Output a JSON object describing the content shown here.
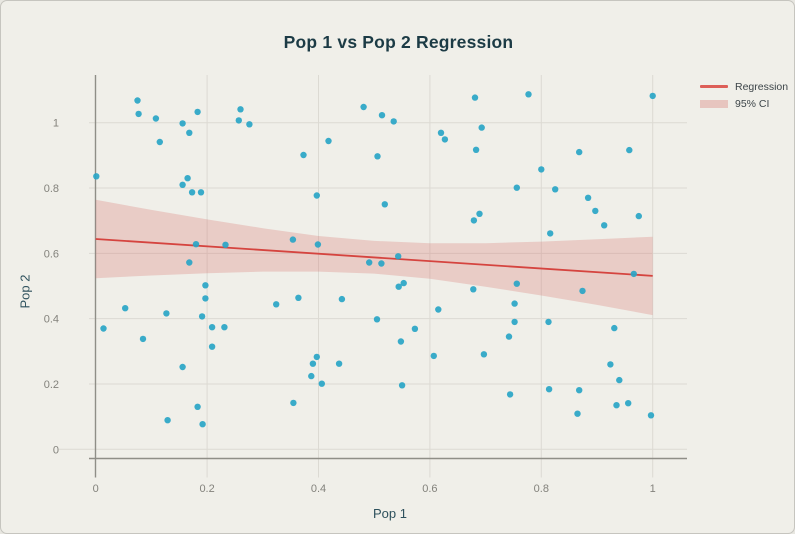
{
  "colors": {
    "background": "#f0efe9",
    "title": "#1c3b45",
    "axis_title": "#2d505c",
    "tick_label": "#83827c",
    "gridline": "#dcdad3",
    "spine": "#8f8e87",
    "point": "#29a5c6",
    "regression": "#d5443f",
    "ci_fill": "#d5655f",
    "legend_text": "#3d4549"
  },
  "legend": {
    "items": [
      {
        "label": "Regression",
        "swatch": "line-swatch"
      },
      {
        "label": "95% CI",
        "swatch": "band-swatch"
      }
    ]
  },
  "chart_data": {
    "type": "scatter",
    "title": "Pop 1 vs Pop 2 Regression",
    "xlabel": "Pop 1",
    "ylabel": "Pop 2",
    "xlim": [
      -0.012,
      1.062
    ],
    "ylim": [
      -0.028,
      1.146
    ],
    "grid": true,
    "legend_position": "top-right",
    "x_ticks": [
      0,
      0.2,
      0.4,
      0.6,
      0.8,
      1
    ],
    "x_tick_labels": [
      "0",
      "0.2",
      "0.4",
      "0.6",
      "0.8",
      "1"
    ],
    "y_ticks": [
      0,
      0.2,
      0.4,
      0.6,
      0.8,
      1
    ],
    "y_tick_labels": [
      "0",
      "0.2",
      "0.4",
      "0.6",
      "0.8",
      "1"
    ],
    "points": [
      [
        0.075,
        1.068
      ],
      [
        0.077,
        1.027
      ],
      [
        0.108,
        1.013
      ],
      [
        0.156,
        0.998
      ],
      [
        0.183,
        1.033
      ],
      [
        0.26,
        1.041
      ],
      [
        0.257,
        1.007
      ],
      [
        0.276,
        0.995
      ],
      [
        0.168,
        0.969
      ],
      [
        0.115,
        0.941
      ],
      [
        0.001,
        0.836
      ],
      [
        0.165,
        0.83
      ],
      [
        0.156,
        0.81
      ],
      [
        0.173,
        0.787
      ],
      [
        0.189,
        0.787
      ],
      [
        0.18,
        0.628
      ],
      [
        0.233,
        0.626
      ],
      [
        0.481,
        1.048
      ],
      [
        0.514,
        1.023
      ],
      [
        0.535,
        1.004
      ],
      [
        0.62,
        0.969
      ],
      [
        0.627,
        0.949
      ],
      [
        0.418,
        0.944
      ],
      [
        0.373,
        0.901
      ],
      [
        0.506,
        0.897
      ],
      [
        0.397,
        0.777
      ],
      [
        0.519,
        0.75
      ],
      [
        0.354,
        0.642
      ],
      [
        0.399,
        0.627
      ],
      [
        0.543,
        0.591
      ],
      [
        0.681,
        1.077
      ],
      [
        0.777,
        1.087
      ],
      [
        1.0,
        1.082
      ],
      [
        0.693,
        0.985
      ],
      [
        0.683,
        0.917
      ],
      [
        0.868,
        0.91
      ],
      [
        0.958,
        0.916
      ],
      [
        0.8,
        0.857
      ],
      [
        0.756,
        0.801
      ],
      [
        0.825,
        0.796
      ],
      [
        0.884,
        0.77
      ],
      [
        0.897,
        0.73
      ],
      [
        0.689,
        0.721
      ],
      [
        0.679,
        0.701
      ],
      [
        0.975,
        0.714
      ],
      [
        0.913,
        0.686
      ],
      [
        0.816,
        0.661
      ],
      [
        0.168,
        0.572
      ],
      [
        0.197,
        0.502
      ],
      [
        0.197,
        0.462
      ],
      [
        0.053,
        0.432
      ],
      [
        0.127,
        0.416
      ],
      [
        0.191,
        0.407
      ],
      [
        0.014,
        0.37
      ],
      [
        0.209,
        0.374
      ],
      [
        0.231,
        0.374
      ],
      [
        0.085,
        0.338
      ],
      [
        0.209,
        0.314
      ],
      [
        0.156,
        0.252
      ],
      [
        0.324,
        0.444
      ],
      [
        0.183,
        0.13
      ],
      [
        0.129,
        0.089
      ],
      [
        0.192,
        0.077
      ],
      [
        0.491,
        0.572
      ],
      [
        0.513,
        0.569
      ],
      [
        0.544,
        0.498
      ],
      [
        0.553,
        0.509
      ],
      [
        0.364,
        0.464
      ],
      [
        0.442,
        0.46
      ],
      [
        0.615,
        0.428
      ],
      [
        0.505,
        0.398
      ],
      [
        0.573,
        0.369
      ],
      [
        0.548,
        0.33
      ],
      [
        0.607,
        0.286
      ],
      [
        0.397,
        0.283
      ],
      [
        0.39,
        0.262
      ],
      [
        0.437,
        0.262
      ],
      [
        0.387,
        0.224
      ],
      [
        0.406,
        0.201
      ],
      [
        0.55,
        0.196
      ],
      [
        0.355,
        0.142
      ],
      [
        0.966,
        0.537
      ],
      [
        0.756,
        0.507
      ],
      [
        0.678,
        0.49
      ],
      [
        0.874,
        0.485
      ],
      [
        0.752,
        0.446
      ],
      [
        0.752,
        0.39
      ],
      [
        0.813,
        0.39
      ],
      [
        0.931,
        0.371
      ],
      [
        0.742,
        0.345
      ],
      [
        0.697,
        0.291
      ],
      [
        0.924,
        0.26
      ],
      [
        0.94,
        0.212
      ],
      [
        0.814,
        0.184
      ],
      [
        0.868,
        0.181
      ],
      [
        0.744,
        0.168
      ],
      [
        0.935,
        0.135
      ],
      [
        0.956,
        0.141
      ],
      [
        0.865,
        0.109
      ],
      [
        0.997,
        0.104
      ]
    ],
    "series": [
      {
        "name": "Regression",
        "type": "line",
        "x": [
          0,
          1
        ],
        "y": [
          0.644,
          0.531
        ]
      },
      {
        "name": "95% CI",
        "type": "band",
        "x": [
          0,
          0.1,
          0.2,
          0.3,
          0.4,
          0.5,
          0.6,
          0.7,
          0.8,
          0.9,
          1.0
        ],
        "upper": [
          0.764,
          0.733,
          0.704,
          0.677,
          0.653,
          0.638,
          0.631,
          0.631,
          0.636,
          0.643,
          0.651
        ],
        "lower": [
          0.524,
          0.532,
          0.539,
          0.544,
          0.544,
          0.538,
          0.522,
          0.498,
          0.471,
          0.442,
          0.411
        ]
      }
    ]
  }
}
